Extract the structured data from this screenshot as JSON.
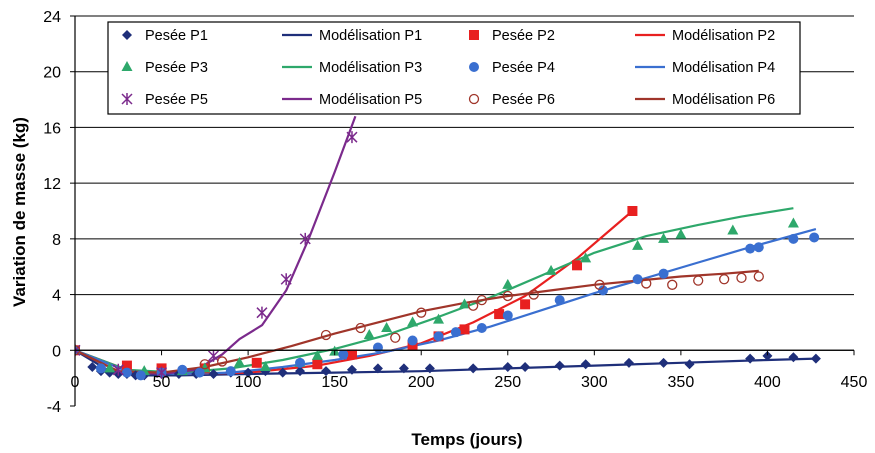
{
  "chart_data": {
    "type": "scatter",
    "xlabel": "Temps (jours)",
    "ylabel": "Variation de masse (kg)",
    "xlim": [
      0,
      450
    ],
    "ylim": [
      -4,
      24
    ],
    "xticks": [
      0,
      50,
      100,
      150,
      200,
      250,
      300,
      350,
      400,
      450
    ],
    "yticks": [
      -4,
      0,
      4,
      8,
      12,
      16,
      20,
      24
    ],
    "grid": "horizontal",
    "legend_placement": "top",
    "series": [
      {
        "name": "Pesée P1",
        "kind": "marker",
        "marker": "diamond",
        "color": "#1f2f7a",
        "x": [
          0,
          10,
          15,
          20,
          25,
          30,
          35,
          40,
          50,
          60,
          70,
          80,
          90,
          100,
          110,
          120,
          130,
          145,
          160,
          175,
          190,
          205,
          230,
          250,
          260,
          280,
          295,
          320,
          340,
          355,
          390,
          400,
          415,
          428
        ],
        "y": [
          0,
          -1.2,
          -1.5,
          -1.6,
          -1.7,
          -1.7,
          -1.8,
          -1.8,
          -1.7,
          -1.7,
          -1.7,
          -1.7,
          -1.6,
          -1.6,
          -1.5,
          -1.6,
          -1.5,
          -1.5,
          -1.4,
          -1.3,
          -1.3,
          -1.3,
          -1.3,
          -1.2,
          -1.2,
          -1.1,
          -1.0,
          -0.9,
          -0.9,
          -1.0,
          -0.6,
          -0.4,
          -0.5,
          -0.6
        ]
      },
      {
        "name": "Modélisation P1",
        "kind": "line",
        "color": "#1f2f7a",
        "x": [
          0,
          20,
          40,
          60,
          100,
          150,
          200,
          250,
          300,
          350,
          400,
          428
        ],
        "y": [
          0,
          -1.5,
          -1.8,
          -1.8,
          -1.7,
          -1.6,
          -1.5,
          -1.3,
          -1.1,
          -0.9,
          -0.7,
          -0.6
        ]
      },
      {
        "name": "Pesée P2",
        "kind": "marker",
        "marker": "square",
        "color": "#e82020",
        "x": [
          0,
          30,
          50,
          75,
          105,
          140,
          160,
          195,
          210,
          225,
          245,
          260,
          290,
          322
        ],
        "y": [
          0,
          -1.1,
          -1.3,
          -1.3,
          -0.9,
          -1.0,
          -0.3,
          0.4,
          1.0,
          1.5,
          2.6,
          3.3,
          6.1,
          10.0
        ]
      },
      {
        "name": "Modélisation P2",
        "kind": "line",
        "color": "#e82020",
        "x": [
          0,
          30,
          60,
          100,
          140,
          170,
          200,
          230,
          260,
          290,
          322
        ],
        "y": [
          0,
          -1.4,
          -1.7,
          -1.6,
          -1.1,
          -0.4,
          0.5,
          2.0,
          3.9,
          6.6,
          10.0
        ]
      },
      {
        "name": "Pesée P3",
        "kind": "marker",
        "marker": "triangle",
        "color": "#2ea86b",
        "x": [
          0,
          20,
          40,
          62,
          75,
          95,
          110,
          130,
          140,
          150,
          170,
          180,
          195,
          210,
          225,
          250,
          275,
          295,
          325,
          340,
          350,
          380,
          415
        ],
        "y": [
          0,
          -1.3,
          -1.5,
          -1.5,
          -1.3,
          -0.9,
          -1.2,
          -0.9,
          -0.4,
          -0.1,
          1.1,
          1.6,
          2.0,
          2.2,
          3.3,
          4.7,
          5.7,
          6.6,
          7.5,
          8.0,
          8.3,
          8.6,
          9.1
        ]
      },
      {
        "name": "Modélisation P3",
        "kind": "line",
        "color": "#2ea86b",
        "x": [
          0,
          30,
          60,
          90,
          120,
          150,
          180,
          210,
          240,
          270,
          300,
          330,
          360,
          385,
          415
        ],
        "y": [
          0,
          -1.4,
          -1.6,
          -1.3,
          -0.7,
          0.1,
          1.1,
          2.4,
          3.8,
          5.4,
          7.0,
          8.2,
          9.0,
          9.6,
          10.2
        ]
      },
      {
        "name": "Pesée P4",
        "kind": "marker",
        "marker": "circle",
        "color": "#3a6fd0",
        "x": [
          0,
          15,
          30,
          38,
          50,
          62,
          72,
          90,
          130,
          155,
          175,
          195,
          210,
          220,
          235,
          250,
          280,
          305,
          325,
          340,
          390,
          395,
          415,
          427
        ],
        "y": [
          0,
          -1.3,
          -1.6,
          -1.8,
          -1.6,
          -1.4,
          -1.6,
          -1.5,
          -0.9,
          -0.3,
          0.2,
          0.7,
          1.0,
          1.3,
          1.6,
          2.5,
          3.6,
          4.3,
          5.1,
          5.5,
          7.3,
          7.4,
          8.0,
          8.1
        ]
      },
      {
        "name": "Modélisation P4",
        "kind": "line",
        "color": "#3a6fd0",
        "x": [
          0,
          30,
          60,
          90,
          120,
          150,
          180,
          210,
          240,
          270,
          300,
          330,
          360,
          390,
          428
        ],
        "y": [
          0,
          -1.5,
          -1.7,
          -1.6,
          -1.2,
          -0.7,
          -0.1,
          0.7,
          1.7,
          2.9,
          4.1,
          5.2,
          6.3,
          7.4,
          8.7
        ]
      },
      {
        "name": "Pesée P5",
        "kind": "marker",
        "marker": "star",
        "color": "#7b2a8c",
        "x": [
          0,
          25,
          50,
          80,
          108,
          122,
          133,
          160
        ],
        "y": [
          0,
          -1.4,
          -1.6,
          -0.4,
          2.7,
          5.1,
          8.0,
          15.3
        ]
      },
      {
        "name": "Modélisation P5",
        "kind": "line",
        "color": "#7b2a8c",
        "x": [
          0,
          25,
          50,
          70,
          85,
          95,
          108,
          122,
          135,
          150,
          162
        ],
        "y": [
          0,
          -1.5,
          -1.7,
          -1.4,
          -0.3,
          0.8,
          1.8,
          4.3,
          8.0,
          12.8,
          16.8
        ]
      },
      {
        "name": "Pesée P6",
        "kind": "marker",
        "marker": "open-circle",
        "color": "#a0352a",
        "x": [
          0,
          75,
          85,
          145,
          165,
          185,
          200,
          230,
          235,
          250,
          265,
          303,
          330,
          345,
          360,
          375,
          385,
          395
        ],
        "y": [
          0,
          -1.0,
          -0.8,
          1.1,
          1.6,
          0.9,
          2.7,
          3.2,
          3.6,
          3.9,
          4.0,
          4.7,
          4.8,
          4.7,
          5.0,
          5.1,
          5.2,
          5.3
        ]
      },
      {
        "name": "Modélisation P6",
        "kind": "line",
        "color": "#a0352a",
        "x": [
          0,
          25,
          50,
          75,
          100,
          125,
          150,
          175,
          200,
          225,
          250,
          275,
          300,
          325,
          350,
          375,
          395
        ],
        "y": [
          0,
          -1.5,
          -1.6,
          -1.2,
          -0.5,
          0.3,
          1.2,
          2.0,
          2.8,
          3.4,
          3.9,
          4.3,
          4.7,
          5.0,
          5.3,
          5.5,
          5.7
        ]
      }
    ]
  }
}
